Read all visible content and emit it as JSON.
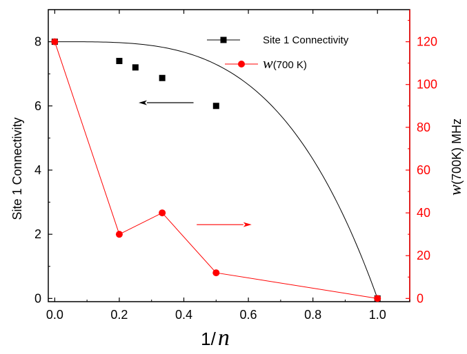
{
  "chart_data": {
    "type": "line",
    "title": "",
    "xlabel": {
      "prefix": "1/",
      "variable": "n"
    },
    "ylabel_left": "Site 1 Connectivity",
    "ylabel_right": {
      "variable": "w",
      "suffix": "(700K) MHz"
    },
    "xlim": [
      -0.02,
      1.1
    ],
    "ylim_left": [
      -0.1,
      9.0
    ],
    "ylim_right": [
      -1.5,
      135.0
    ],
    "x_ticks": [
      {
        "value": 0.0,
        "label": "0.0"
      },
      {
        "value": 0.2,
        "label": "0.2"
      },
      {
        "value": 0.4,
        "label": "0.4"
      },
      {
        "value": 0.6,
        "label": "0.6"
      },
      {
        "value": 0.8,
        "label": "0.8"
      },
      {
        "value": 1.0,
        "label": "1.0"
      }
    ],
    "y_left_ticks": [
      {
        "value": 0,
        "label": "0"
      },
      {
        "value": 2,
        "label": "2"
      },
      {
        "value": 4,
        "label": "4"
      },
      {
        "value": 6,
        "label": "6"
      },
      {
        "value": 8,
        "label": "8"
      }
    ],
    "y_right_ticks": [
      {
        "value": 0,
        "label": "0"
      },
      {
        "value": 20,
        "label": "20"
      },
      {
        "value": 40,
        "label": "40"
      },
      {
        "value": 60,
        "label": "60"
      },
      {
        "value": 80,
        "label": "80"
      },
      {
        "value": 100,
        "label": "100"
      },
      {
        "value": 120,
        "label": "120"
      }
    ],
    "series": [
      {
        "name": "Site 1 Connectivity",
        "axis": "left",
        "color": "#000000",
        "marker": "square",
        "line": "smooth-fit",
        "x": [
          0.0,
          0.2,
          0.25,
          0.333,
          0.5,
          1.0
        ],
        "y": [
          8.0,
          7.4,
          7.2,
          6.87,
          6.0,
          0.0
        ],
        "fit": {
          "x_end": 1.0,
          "y_start": 8.0,
          "exponent": 3.5
        }
      },
      {
        "name_variable": "w",
        "name_suffix": "(700 K)",
        "axis": "right",
        "color": "#ff0000",
        "marker": "circle",
        "line": "straight",
        "x": [
          0.0,
          0.2,
          0.333,
          0.5,
          1.0
        ],
        "y": [
          120,
          30,
          40,
          12,
          0
        ]
      }
    ],
    "annotations": [
      {
        "type": "arrow",
        "color": "#000000",
        "direction": "left",
        "axis": "left",
        "x_from": 0.43,
        "x_to": 0.26,
        "y": 6.1
      },
      {
        "type": "arrow",
        "color": "#ff0000",
        "direction": "right",
        "axis": "right",
        "x_from": 0.44,
        "x_to": 0.61,
        "y": 34.5
      }
    ],
    "legend": {
      "placement": "top-right"
    },
    "grid": false
  }
}
